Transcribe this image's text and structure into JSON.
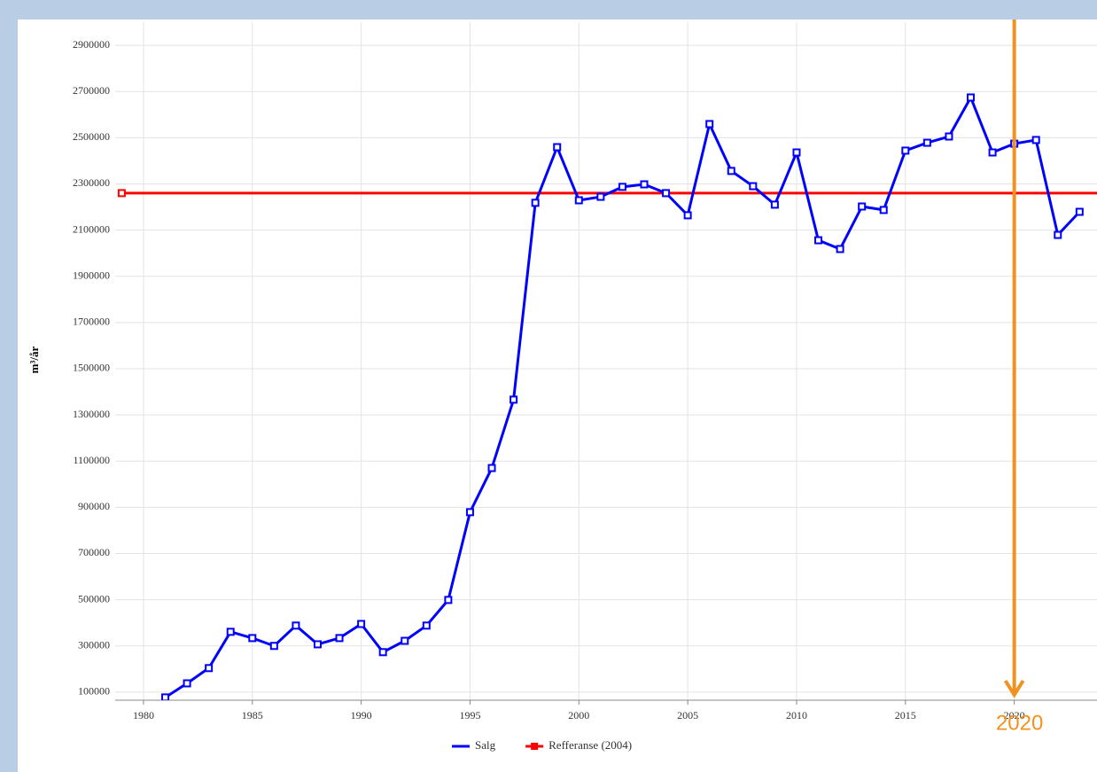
{
  "chart_data": {
    "type": "line",
    "y_label": "m³/år",
    "xlim": [
      1978.7,
      2023.8
    ],
    "xticks": [
      1980,
      1985,
      1990,
      1995,
      2000,
      2005,
      2010,
      2015,
      2020
    ],
    "ylim": [
      65000,
      3000000
    ],
    "yticks": [
      100000,
      300000,
      500000,
      700000,
      900000,
      1100000,
      1300000,
      1500000,
      1700000,
      1900000,
      2100000,
      2300000,
      2500000,
      2700000,
      2900000
    ],
    "grid": true,
    "legend": "bottom",
    "series": [
      {
        "name": "Salg",
        "color": "#0000ff",
        "x": [
          1981,
          1982,
          1983,
          1984,
          1985,
          1986,
          1987,
          1988,
          1989,
          1990,
          1991,
          1992,
          1993,
          1994,
          1995,
          1996,
          1997,
          1998,
          1999,
          2000,
          2001,
          2002,
          2003,
          2004,
          2005,
          2006,
          2007,
          2008,
          2009,
          2010,
          2011,
          2012,
          2013,
          2014,
          2015,
          2016,
          2017,
          2018,
          2019,
          2020,
          2021,
          2022,
          2023
        ],
        "values": [
          77000,
          138000,
          204000,
          361000,
          334000,
          300000,
          388000,
          307000,
          334000,
          395000,
          273000,
          322000,
          388000,
          499000,
          879000,
          1070000,
          1366000,
          2218000,
          2459000,
          2229000,
          2244000,
          2287000,
          2298000,
          2260000,
          2164000,
          2559000,
          2356000,
          2290000,
          2210000,
          2436000,
          2056000,
          2018000,
          2202000,
          2187000,
          2444000,
          2478000,
          2505000,
          2674000,
          2436000,
          2474000,
          2490000,
          2079000,
          2179000
        ]
      },
      {
        "name": "Refferanse (2004)",
        "color": "#ff0000",
        "x": [
          1979,
          2024
        ],
        "values": [
          2260000,
          2260000
        ]
      }
    ],
    "annotations": [
      {
        "text": "2020",
        "x": 2020,
        "color": "#f0921e"
      }
    ]
  }
}
